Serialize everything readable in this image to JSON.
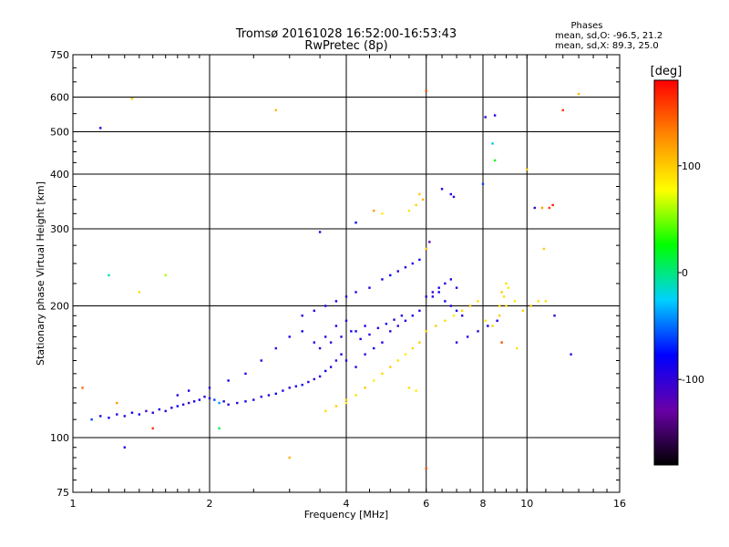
{
  "header": {
    "title": "Tromsø 20161028 16:52:00-16:53:43",
    "subtitle": "RwPretec (8p)"
  },
  "phases": {
    "heading": "Phases",
    "line_o": "mean, sd,O: -96.5, 21.2",
    "line_x": "mean, sd,X:  89.3, 25.0"
  },
  "chart_data": {
    "type": "scatter",
    "title": "Tromsø 20161028 16:52:00-16:53:43",
    "subtitle": "RwPretec (8p)",
    "xlabel": "Frequency [MHz]",
    "ylabel": "Stationary phase Virtual Height [km]",
    "x_scale": "log",
    "y_scale": "log",
    "xlim": [
      1,
      16
    ],
    "ylim": [
      75,
      750
    ],
    "x_ticks": [
      1,
      2,
      4,
      6,
      8,
      10,
      16
    ],
    "y_ticks": [
      75,
      100,
      200,
      300,
      400,
      500,
      600,
      750
    ],
    "grid": true,
    "colorbar": {
      "label": "[deg]",
      "range": [
        -180,
        180
      ],
      "ticks": [
        100,
        0,
        -100
      ],
      "colors": [
        "#000000",
        "#6a00a8",
        "#0000ff",
        "#00d0ff",
        "#00ff00",
        "#ffff00",
        "#ff8800",
        "#ff0000"
      ]
    },
    "series": [
      {
        "points": [
          [
            1.1,
            110,
            -60
          ],
          [
            1.15,
            112,
            -90
          ],
          [
            1.2,
            111,
            -85
          ],
          [
            1.25,
            113,
            -95
          ],
          [
            1.3,
            112,
            -100
          ],
          [
            1.35,
            114,
            -80
          ],
          [
            1.4,
            113,
            -90
          ],
          [
            1.45,
            115,
            -110
          ],
          [
            1.5,
            114,
            -95
          ],
          [
            1.55,
            116,
            -85
          ],
          [
            1.6,
            115,
            -100
          ],
          [
            1.65,
            117,
            -90
          ],
          [
            1.7,
            118,
            -80
          ],
          [
            1.75,
            119,
            -95
          ],
          [
            1.8,
            120,
            -105
          ],
          [
            1.85,
            121,
            -90
          ],
          [
            1.9,
            122,
            -85
          ],
          [
            1.95,
            124,
            -100
          ],
          [
            2.0,
            123,
            -95
          ],
          [
            2.05,
            122,
            -60
          ],
          [
            2.1,
            120,
            -40
          ],
          [
            2.15,
            121,
            -90
          ],
          [
            2.2,
            119,
            -100
          ],
          [
            2.3,
            120,
            -95
          ],
          [
            2.4,
            121,
            -85
          ],
          [
            2.5,
            122,
            -90
          ],
          [
            2.6,
            124,
            -100
          ],
          [
            2.7,
            125,
            -90
          ],
          [
            2.8,
            126,
            -80
          ],
          [
            2.9,
            128,
            -95
          ],
          [
            3.0,
            130,
            -100
          ],
          [
            3.1,
            131,
            -85
          ],
          [
            3.2,
            132,
            -90
          ],
          [
            3.3,
            134,
            -95
          ],
          [
            3.4,
            136,
            -100
          ],
          [
            3.5,
            138,
            -90
          ],
          [
            3.6,
            142,
            -80
          ],
          [
            3.7,
            145,
            -95
          ],
          [
            3.8,
            150,
            -100
          ],
          [
            3.9,
            155,
            -90
          ],
          [
            1.7,
            125,
            -95
          ],
          [
            1.8,
            128,
            -90
          ],
          [
            2.0,
            130,
            -100
          ],
          [
            2.2,
            135,
            -85
          ],
          [
            2.4,
            140,
            -90
          ],
          [
            2.6,
            150,
            -95
          ],
          [
            2.8,
            160,
            -100
          ],
          [
            3.0,
            170,
            -90
          ],
          [
            3.2,
            175,
            -85
          ],
          [
            3.4,
            165,
            -95
          ],
          [
            3.6,
            170,
            -100
          ],
          [
            3.8,
            180,
            -90
          ],
          [
            4.0,
            185,
            -95
          ],
          [
            4.2,
            175,
            -85
          ],
          [
            4.4,
            180,
            -90
          ],
          [
            3.2,
            190,
            -100
          ],
          [
            3.4,
            195,
            -95
          ],
          [
            3.6,
            200,
            -90
          ],
          [
            3.8,
            205,
            -85
          ],
          [
            4.0,
            210,
            -100
          ],
          [
            4.2,
            215,
            -95
          ],
          [
            4.5,
            220,
            -90
          ],
          [
            4.8,
            230,
            -85
          ],
          [
            5.0,
            235,
            -80
          ],
          [
            5.2,
            240,
            -100
          ],
          [
            5.4,
            245,
            -95
          ],
          [
            5.6,
            250,
            -90
          ],
          [
            5.8,
            255,
            -85
          ],
          [
            6.0,
            210,
            -95
          ],
          [
            6.2,
            215,
            -100
          ],
          [
            6.4,
            220,
            -90
          ],
          [
            6.6,
            205,
            -85
          ],
          [
            6.8,
            200,
            -95
          ],
          [
            7.0,
            195,
            -90
          ],
          [
            7.2,
            190,
            -100
          ],
          [
            4.0,
            150,
            -90
          ],
          [
            4.2,
            145,
            -95
          ],
          [
            4.4,
            155,
            -100
          ],
          [
            4.6,
            160,
            -85
          ],
          [
            4.8,
            165,
            -90
          ],
          [
            5.0,
            175,
            -95
          ],
          [
            5.2,
            180,
            -100
          ],
          [
            5.4,
            185,
            -90
          ],
          [
            5.6,
            190,
            -85
          ],
          [
            5.8,
            195,
            -95
          ],
          [
            3.5,
            160,
            -90
          ],
          [
            3.7,
            165,
            -95
          ],
          [
            3.9,
            170,
            -100
          ],
          [
            4.1,
            175,
            -85
          ],
          [
            4.3,
            168,
            -90
          ],
          [
            4.5,
            172,
            -95
          ],
          [
            4.7,
            178,
            -90
          ],
          [
            4.9,
            182,
            -85
          ],
          [
            5.1,
            186,
            -100
          ],
          [
            5.3,
            190,
            -95
          ],
          [
            6.2,
            210,
            -90
          ],
          [
            6.4,
            215,
            -85
          ],
          [
            6.6,
            225,
            -95
          ],
          [
            6.8,
            230,
            -100
          ],
          [
            7.0,
            220,
            -90
          ],
          [
            4.0,
            120,
            80
          ],
          [
            4.2,
            125,
            90
          ],
          [
            4.4,
            130,
            100
          ],
          [
            4.6,
            135,
            85
          ],
          [
            4.8,
            140,
            95
          ],
          [
            5.0,
            145,
            100
          ],
          [
            5.2,
            150,
            90
          ],
          [
            5.4,
            155,
            85
          ],
          [
            5.6,
            160,
            95
          ],
          [
            5.8,
            165,
            100
          ],
          [
            3.6,
            115,
            90
          ],
          [
            3.8,
            118,
            100
          ],
          [
            4.0,
            122,
            95
          ],
          [
            5.5,
            130,
            90
          ],
          [
            5.7,
            128,
            85
          ],
          [
            6.0,
            175,
            95
          ],
          [
            6.3,
            180,
            100
          ],
          [
            6.6,
            185,
            90
          ],
          [
            6.9,
            190,
            85
          ],
          [
            7.2,
            195,
            95
          ],
          [
            7.5,
            200,
            100
          ],
          [
            7.8,
            205,
            90
          ],
          [
            8.1,
            185,
            85
          ],
          [
            8.4,
            180,
            95
          ],
          [
            8.7,
            190,
            100
          ],
          [
            9.0,
            200,
            90
          ],
          [
            9.4,
            205,
            85
          ],
          [
            9.8,
            195,
            95
          ],
          [
            10.2,
            200,
            100
          ],
          [
            10.6,
            205,
            90
          ],
          [
            5.8,
            360,
            100
          ],
          [
            5.9,
            350,
            110
          ],
          [
            5.7,
            340,
            95
          ],
          [
            5.5,
            330,
            90
          ],
          [
            4.8,
            325,
            85
          ],
          [
            7.0,
            165,
            -90
          ],
          [
            7.4,
            170,
            -95
          ],
          [
            7.8,
            175,
            -100
          ],
          [
            8.2,
            180,
            -85
          ],
          [
            8.6,
            185,
            -90
          ],
          [
            8.9,
            210,
            90
          ],
          [
            9.1,
            220,
            85
          ],
          [
            8.7,
            200,
            95
          ],
          [
            8.8,
            215,
            100
          ],
          [
            9.0,
            225,
            90
          ],
          [
            6.5,
            370,
            -95
          ],
          [
            6.8,
            360,
            -90
          ],
          [
            6.9,
            355,
            -100
          ],
          [
            8.1,
            540,
            -95
          ],
          [
            8.5,
            545,
            -90
          ],
          [
            10.4,
            335,
            -100
          ],
          [
            10.8,
            335,
            120
          ],
          [
            11.2,
            335,
            160
          ],
          [
            11.4,
            340,
            170
          ],
          [
            12.0,
            560,
            160
          ],
          [
            1.15,
            510,
            -95
          ],
          [
            1.35,
            595,
            100
          ],
          [
            2.8,
            560,
            110
          ],
          [
            6.0,
            620,
            150
          ],
          [
            13.0,
            610,
            110
          ],
          [
            1.4,
            215,
            90
          ],
          [
            1.6,
            235,
            60
          ],
          [
            1.2,
            235,
            -10
          ],
          [
            1.05,
            130,
            140
          ],
          [
            1.25,
            120,
            120
          ],
          [
            1.3,
            95,
            -90
          ],
          [
            1.5,
            105,
            160
          ],
          [
            2.1,
            105,
            10
          ],
          [
            3.0,
            90,
            110
          ],
          [
            6.0,
            85,
            150
          ],
          [
            3.5,
            295,
            -90
          ],
          [
            4.2,
            310,
            -80
          ],
          [
            4.6,
            330,
            120
          ],
          [
            6.0,
            270,
            100
          ],
          [
            6.1,
            280,
            -120
          ],
          [
            8.5,
            430,
            20
          ],
          [
            8.4,
            470,
            -30
          ],
          [
            10.0,
            410,
            100
          ],
          [
            8.0,
            380,
            -60
          ],
          [
            10.9,
            270,
            100
          ],
          [
            11.5,
            190,
            -100
          ],
          [
            11.0,
            205,
            90
          ],
          [
            12.5,
            155,
            -100
          ],
          [
            9.5,
            160,
            90
          ],
          [
            8.8,
            165,
            150
          ]
        ]
      }
    ]
  }
}
